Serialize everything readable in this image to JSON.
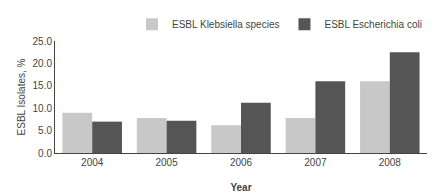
{
  "chart_data": {
    "type": "bar",
    "x_label": "Year",
    "y_label": "ESBL Isolates, %",
    "categories": [
      "2004",
      "2005",
      "2006",
      "2007",
      "2008"
    ],
    "series": [
      {
        "name": "ESBL Klebsiella species",
        "color": "#c8c8c8",
        "values": [
          9.0,
          7.8,
          6.2,
          7.8,
          16.0
        ]
      },
      {
        "name": "ESBL Escherichia coli",
        "color": "#555555",
        "values": [
          7.0,
          7.2,
          11.2,
          16.0,
          22.5
        ]
      }
    ],
    "ylim": [
      0,
      25.0
    ],
    "yticks": [
      {
        "value": 0.0,
        "label": "0.0"
      },
      {
        "value": 5.0,
        "label": "5.0"
      },
      {
        "value": 10.0,
        "label": "10.0"
      },
      {
        "value": 15.0,
        "label": "15.0"
      },
      {
        "value": 20.0,
        "label": "20.0"
      },
      {
        "value": 25.0,
        "label": "25.0"
      }
    ],
    "grid": false,
    "legend": "upper right"
  }
}
